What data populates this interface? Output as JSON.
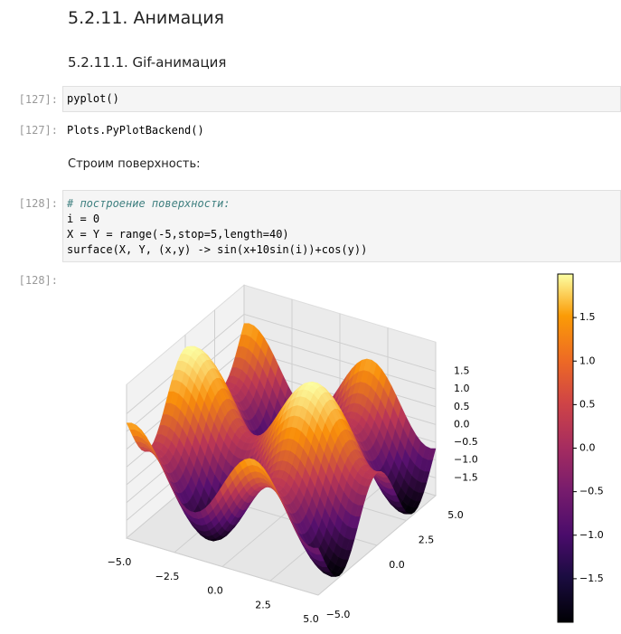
{
  "header": {
    "title": "5.2.11. Анимация",
    "subtitle": "5.2.11.1. Gif-анимация"
  },
  "cells": [
    {
      "prompt": "[127]:",
      "code": [
        "pyplot()"
      ]
    },
    {
      "prompt": "[127]:",
      "output": "Plots.PyPlotBackend()"
    },
    {
      "text": "Строим поверхность:"
    },
    {
      "prompt": "[128]:",
      "code": [
        "# построение поверхности:",
        "i = 0",
        "X = Y = range(-5,stop=5,length=40)",
        "surface(X, Y, (x,y) -> sin(x+10sin(i))+cos(y))"
      ]
    },
    {
      "prompt": "[128]:",
      "plot": {
        "type": "surface",
        "xticks": [
          {
            "value": -5,
            "label": "−5.0"
          },
          {
            "value": -2.5,
            "label": "−2.5"
          },
          {
            "value": 0,
            "label": "0.0"
          },
          {
            "value": 2.5,
            "label": "2.5"
          },
          {
            "value": 5,
            "label": "5.0"
          }
        ],
        "yticks": [
          {
            "value": -5,
            "label": "−5.0"
          },
          {
            "value": 0,
            "label": "0.0"
          },
          {
            "value": 2.5,
            "label": "2.5"
          },
          {
            "value": 5,
            "label": "5.0"
          }
        ],
        "zlim": [
          -2,
          2
        ],
        "zticks": [
          {
            "value": 1.5,
            "label": "1.5"
          },
          {
            "value": 1,
            "label": "1.0"
          },
          {
            "value": 0.5,
            "label": "0.5"
          },
          {
            "value": 0,
            "label": "0.0"
          },
          {
            "value": -0.5,
            "label": "−0.5"
          },
          {
            "value": -1,
            "label": "−1.0"
          },
          {
            "value": -1.5,
            "label": "−1.5"
          }
        ],
        "colorbar": {
          "lim": [
            -2,
            2
          ],
          "ticks": [
            {
              "value": 1.5,
              "label": "1.5"
            },
            {
              "value": 1,
              "label": "1.0"
            },
            {
              "value": 0.5,
              "label": "0.5"
            },
            {
              "value": 0,
              "label": "0.0"
            },
            {
              "value": -0.5,
              "label": "−0.5"
            },
            {
              "value": -1,
              "label": "−1.0"
            },
            {
              "value": -1.5,
              "label": "−1.5"
            }
          ]
        }
      }
    }
  ]
}
